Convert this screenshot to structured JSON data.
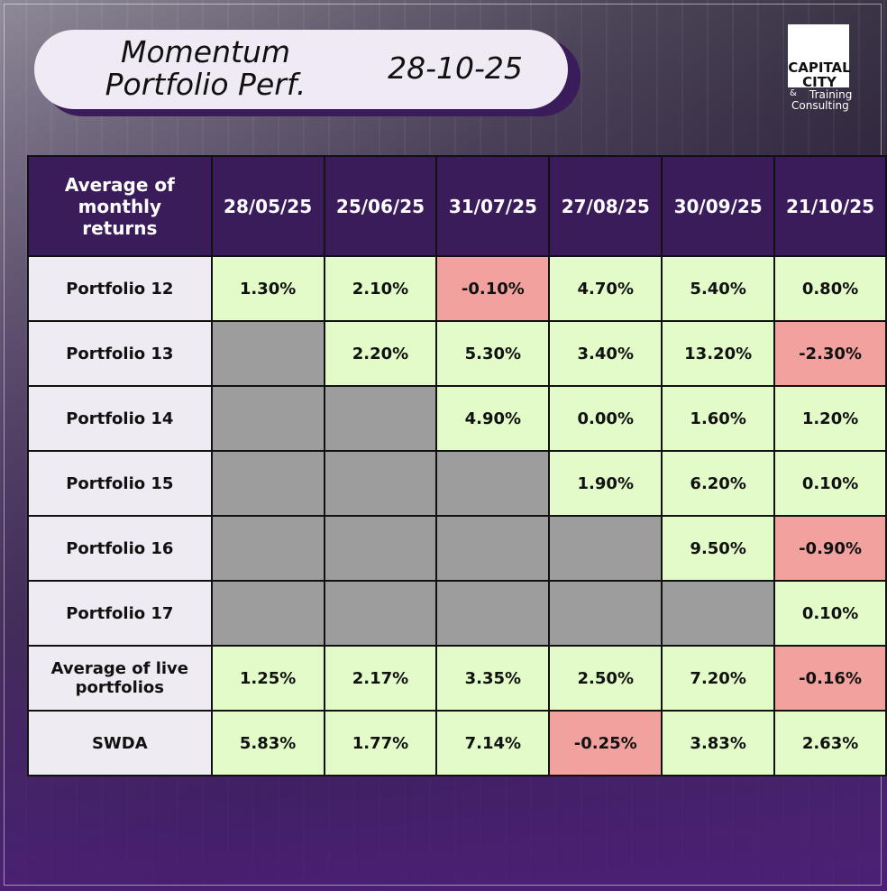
{
  "header": {
    "title_lines": [
      "Momentum",
      "Portfolio Perf."
    ],
    "date": "28-10-25"
  },
  "logo": {
    "lines": [
      "CAPITAL",
      "CITY"
    ],
    "tagline": [
      "&",
      "Training",
      "Consulting"
    ]
  },
  "table": {
    "columns": [
      "Average of monthly returns",
      "28/05/25",
      "25/06/25",
      "31/07/25",
      "27/08/25",
      "30/09/25",
      "21/10/25"
    ],
    "rows": [
      [
        "Portfolio 12",
        "1.30%",
        "2.10%",
        "-0.10%",
        "4.70%",
        "5.40%",
        "0.80%"
      ],
      [
        "Portfolio 13",
        null,
        "2.20%",
        "5.30%",
        "3.40%",
        "13.20%",
        "-2.30%"
      ],
      [
        "Portfolio 14",
        null,
        null,
        "4.90%",
        "0.00%",
        "1.60%",
        "1.20%"
      ],
      [
        "Portfolio 15",
        null,
        null,
        null,
        "1.90%",
        "6.20%",
        "0.10%"
      ],
      [
        "Portfolio 16",
        null,
        null,
        null,
        null,
        "9.50%",
        "-0.90%"
      ],
      [
        "Portfolio 17",
        null,
        null,
        null,
        null,
        null,
        "0.10%"
      ],
      [
        "Average of live portfolios",
        "1.25%",
        "2.17%",
        "3.35%",
        "2.50%",
        "7.20%",
        "-0.16%"
      ],
      [
        "SWDA",
        "5.83%",
        "1.77%",
        "7.14%",
        "-0.25%",
        "3.83%",
        "2.63%"
      ]
    ],
    "colors": {
      "header": "#3b1c5a",
      "label": "#eeebf2",
      "positive": "#e3fbc8",
      "negative": "#f2a29e",
      "empty": "#9d9d9d"
    }
  }
}
